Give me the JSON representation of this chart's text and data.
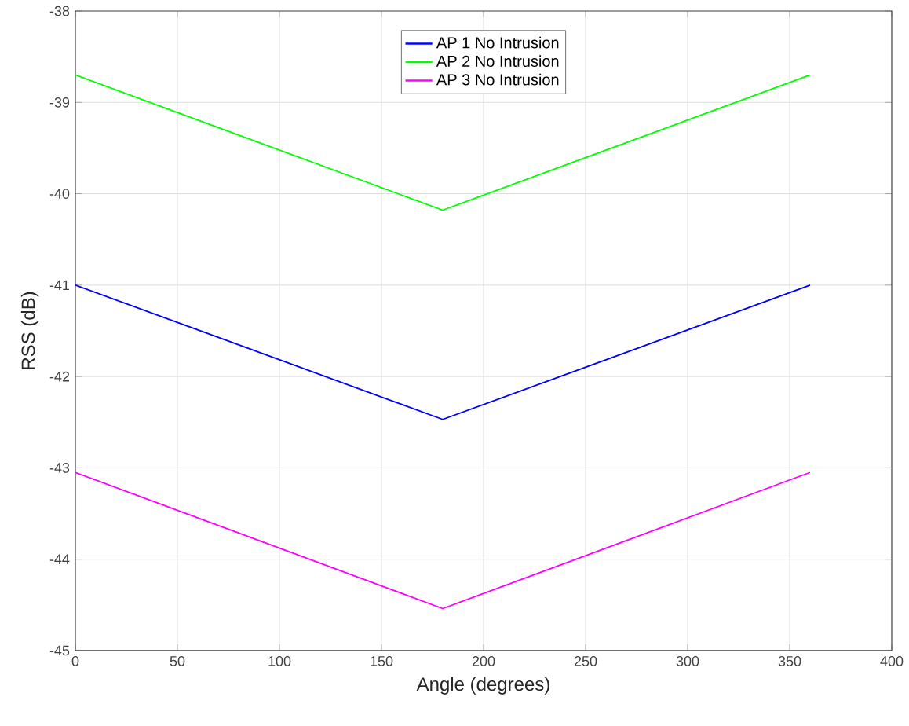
{
  "chart_data": {
    "type": "line",
    "xlabel": "Angle (degrees)",
    "ylabel": "RSS (dB)",
    "x": [
      0,
      180,
      360
    ],
    "series": [
      {
        "name": "AP 1 No Intrusion",
        "color": "#0000ff",
        "values": [
          -41.0,
          -42.47,
          -41.0
        ]
      },
      {
        "name": "AP 2 No Intrusion",
        "color": "#00ff00",
        "values": [
          -38.7,
          -40.18,
          -38.7
        ]
      },
      {
        "name": "AP 3 No Intrusion",
        "color": "#ff00ff",
        "values": [
          -43.05,
          -44.54,
          -43.05
        ]
      }
    ],
    "xlim": [
      0,
      400
    ],
    "xticks": [
      0,
      50,
      100,
      150,
      200,
      250,
      300,
      350,
      400
    ],
    "ylim": [
      -45,
      -38
    ],
    "yticks": [
      -45,
      -44,
      -43,
      -42,
      -41,
      -40,
      -39,
      -38
    ],
    "grid": true,
    "legend": "top",
    "marker": "none",
    "line_style": "solid"
  }
}
